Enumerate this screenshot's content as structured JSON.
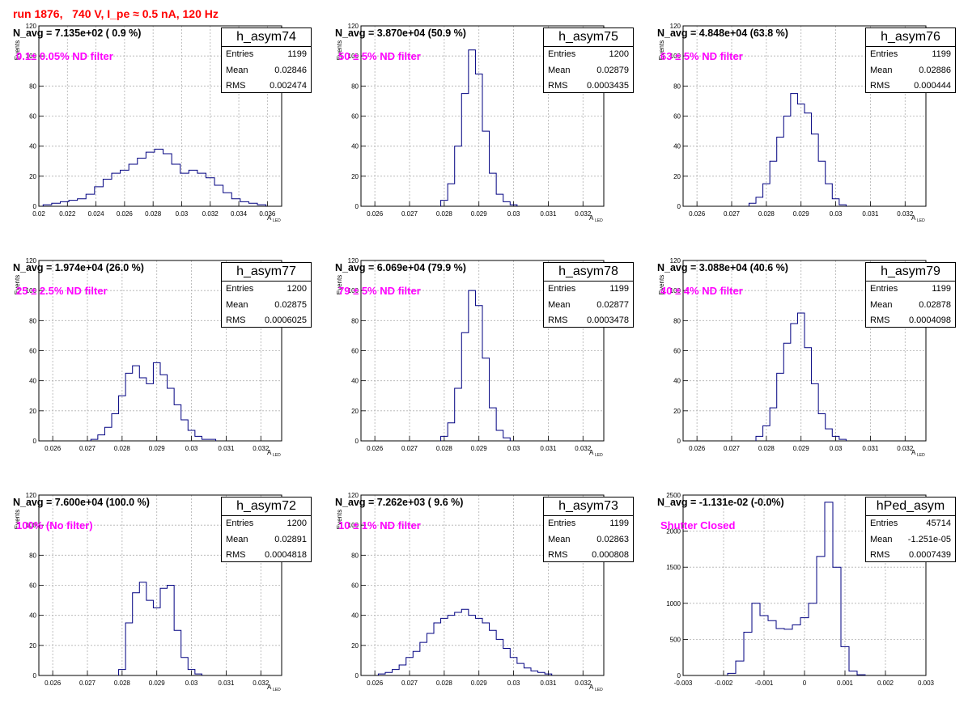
{
  "page": {
    "title": "run 1876,   740 V, I_pe ≈ 0.5 nA, 120 Hz"
  },
  "chart_data": [
    {
      "type": "histogram",
      "name": "h_asym74",
      "navg": "N_avg = 7.135e+02 ( 0.9 %)",
      "filter_label": "0.1± 0.05% ND filter",
      "stats": {
        "entries": "1199",
        "mean": "0.02846",
        "rms": "0.002474"
      },
      "xlim": [
        0.02,
        0.037
      ],
      "ylim": [
        0,
        120
      ],
      "xticks": [
        "0.02",
        "0.022",
        "0.024",
        "0.026",
        "0.028",
        "0.03",
        "0.032",
        "0.034",
        "0.036"
      ],
      "yticks": [
        "0",
        "20",
        "40",
        "60",
        "80",
        "100",
        "120"
      ],
      "xlabel": "A",
      "xlabel_sub": "LED",
      "ylabel": "Events",
      "line_color": "#000080",
      "x": [
        0.0206,
        0.0212,
        0.0218,
        0.0224,
        0.023,
        0.0236,
        0.0242,
        0.0248,
        0.0254,
        0.026,
        0.0266,
        0.0272,
        0.0278,
        0.0284,
        0.029,
        0.0296,
        0.0302,
        0.0308,
        0.0314,
        0.032,
        0.0326,
        0.0332,
        0.0338,
        0.0344,
        0.035,
        0.0356
      ],
      "y": [
        1,
        2,
        3,
        4,
        5,
        8,
        13,
        18,
        22,
        24,
        28,
        32,
        36,
        38,
        35,
        28,
        22,
        24,
        22,
        19,
        14,
        9,
        5,
        3,
        2,
        1
      ]
    },
    {
      "type": "histogram",
      "name": "h_asym75",
      "navg": "N_avg = 3.870e+04 (50.9 %)",
      "filter_label": "50 ± 5% ND filter",
      "stats": {
        "entries": "1200",
        "mean": "0.02879",
        "rms": "0.0003435"
      },
      "xlim": [
        0.0256,
        0.0326
      ],
      "ylim": [
        0,
        120
      ],
      "xticks": [
        "0.026",
        "0.027",
        "0.028",
        "0.029",
        "0.03",
        "0.031",
        "0.032"
      ],
      "yticks": [
        "0",
        "20",
        "40",
        "60",
        "80",
        "100",
        "120"
      ],
      "xlabel": "A",
      "xlabel_sub": "LED",
      "ylabel": "Events",
      "line_color": "#000080",
      "x": [
        0.028,
        0.0282,
        0.0284,
        0.0286,
        0.0288,
        0.029,
        0.0292,
        0.0294,
        0.0296,
        0.0298,
        0.03
      ],
      "y": [
        4,
        15,
        40,
        75,
        104,
        88,
        50,
        22,
        8,
        3,
        1
      ]
    },
    {
      "type": "histogram",
      "name": "h_asym76",
      "navg": "N_avg = 4.848e+04 (63.8 %)",
      "filter_label": "63 ± 5% ND filter",
      "stats": {
        "entries": "1199",
        "mean": "0.02886",
        "rms": "0.000444"
      },
      "xlim": [
        0.0256,
        0.0326
      ],
      "ylim": [
        0,
        120
      ],
      "xticks": [
        "0.026",
        "0.027",
        "0.028",
        "0.029",
        "0.03",
        "0.031",
        "0.032"
      ],
      "yticks": [
        "0",
        "20",
        "40",
        "60",
        "80",
        "100",
        "120"
      ],
      "xlabel": "A",
      "xlabel_sub": "LED",
      "ylabel": "Events",
      "line_color": "#000080",
      "x": [
        0.0276,
        0.0278,
        0.028,
        0.0282,
        0.0284,
        0.0286,
        0.0288,
        0.029,
        0.0292,
        0.0294,
        0.0296,
        0.0298,
        0.03,
        0.0302
      ],
      "y": [
        2,
        6,
        15,
        30,
        46,
        60,
        75,
        68,
        62,
        48,
        30,
        15,
        5,
        1
      ]
    },
    {
      "type": "histogram",
      "name": "h_asym77",
      "navg": "N_avg = 1.974e+04 (26.0 %)",
      "filter_label": "25 ± 2.5% ND filter",
      "stats": {
        "entries": "1200",
        "mean": "0.02875",
        "rms": "0.0006025"
      },
      "xlim": [
        0.0256,
        0.0326
      ],
      "ylim": [
        0,
        120
      ],
      "xticks": [
        "0.026",
        "0.027",
        "0.028",
        "0.029",
        "0.03",
        "0.031",
        "0.032"
      ],
      "yticks": [
        "0",
        "20",
        "40",
        "60",
        "80",
        "100",
        "120"
      ],
      "xlabel": "A",
      "xlabel_sub": "LED",
      "ylabel": "Events",
      "line_color": "#000080",
      "x": [
        0.0272,
        0.0274,
        0.0276,
        0.0278,
        0.028,
        0.0282,
        0.0284,
        0.0286,
        0.0288,
        0.029,
        0.0292,
        0.0294,
        0.0296,
        0.0298,
        0.03,
        0.0302,
        0.0304,
        0.0306
      ],
      "y": [
        1,
        4,
        9,
        18,
        30,
        45,
        50,
        42,
        38,
        52,
        44,
        35,
        24,
        14,
        7,
        3,
        1,
        1
      ]
    },
    {
      "type": "histogram",
      "name": "h_asym78",
      "navg": "N_avg = 6.069e+04 (79.9 %)",
      "filter_label": "79 ± 5% ND filter",
      "stats": {
        "entries": "1199",
        "mean": "0.02877",
        "rms": "0.0003478"
      },
      "xlim": [
        0.0256,
        0.0326
      ],
      "ylim": [
        0,
        120
      ],
      "xticks": [
        "0.026",
        "0.027",
        "0.028",
        "0.029",
        "0.03",
        "0.031",
        "0.032"
      ],
      "yticks": [
        "0",
        "20",
        "40",
        "60",
        "80",
        "100",
        "120"
      ],
      "xlabel": "A",
      "xlabel_sub": "LED",
      "ylabel": "Events",
      "line_color": "#000080",
      "x": [
        0.028,
        0.0282,
        0.0284,
        0.0286,
        0.0288,
        0.029,
        0.0292,
        0.0294,
        0.0296,
        0.0298
      ],
      "y": [
        3,
        12,
        35,
        72,
        100,
        90,
        55,
        22,
        7,
        2
      ]
    },
    {
      "type": "histogram",
      "name": "h_asym79",
      "navg": "N_avg = 3.088e+04 (40.6 %)",
      "filter_label": "40 ± 4% ND filter",
      "stats": {
        "entries": "1199",
        "mean": "0.02878",
        "rms": "0.0004098"
      },
      "xlim": [
        0.0256,
        0.0326
      ],
      "ylim": [
        0,
        120
      ],
      "xticks": [
        "0.026",
        "0.027",
        "0.028",
        "0.029",
        "0.03",
        "0.031",
        "0.032"
      ],
      "yticks": [
        "0",
        "20",
        "40",
        "60",
        "80",
        "100",
        "120"
      ],
      "xlabel": "A",
      "xlabel_sub": "LED",
      "ylabel": "Events",
      "line_color": "#000080",
      "x": [
        0.0278,
        0.028,
        0.0282,
        0.0284,
        0.0286,
        0.0288,
        0.029,
        0.0292,
        0.0294,
        0.0296,
        0.0298,
        0.03,
        0.0302
      ],
      "y": [
        3,
        10,
        22,
        45,
        65,
        78,
        85,
        62,
        38,
        18,
        8,
        3,
        1
      ]
    },
    {
      "type": "histogram",
      "name": "h_asym72",
      "navg": "N_avg = 7.600e+04 (100.0 %)",
      "filter_label": "100% (No filter)",
      "stats": {
        "entries": "1200",
        "mean": "0.02891",
        "rms": "0.0004818"
      },
      "xlim": [
        0.0256,
        0.0326
      ],
      "ylim": [
        0,
        120
      ],
      "xticks": [
        "0.026",
        "0.027",
        "0.028",
        "0.029",
        "0.03",
        "0.031",
        "0.032"
      ],
      "yticks": [
        "0",
        "20",
        "40",
        "60",
        "80",
        "100",
        "120"
      ],
      "xlabel": "A",
      "xlabel_sub": "LED",
      "ylabel": "Events",
      "line_color": "#000080",
      "x": [
        0.028,
        0.0282,
        0.0284,
        0.0286,
        0.0288,
        0.029,
        0.0292,
        0.0294,
        0.0296,
        0.0298,
        0.03,
        0.0302
      ],
      "y": [
        4,
        35,
        55,
        62,
        50,
        45,
        58,
        60,
        30,
        12,
        4,
        1
      ]
    },
    {
      "type": "histogram",
      "name": "h_asym73",
      "navg": "N_avg = 7.262e+03 ( 9.6 %)",
      "filter_label": "10 ± 1% ND filter",
      "stats": {
        "entries": "1199",
        "mean": "0.02863",
        "rms": "0.000808"
      },
      "xlim": [
        0.0256,
        0.0326
      ],
      "ylim": [
        0,
        120
      ],
      "xticks": [
        "0.026",
        "0.027",
        "0.028",
        "0.029",
        "0.03",
        "0.031",
        "0.032"
      ],
      "yticks": [
        "0",
        "20",
        "40",
        "60",
        "80",
        "100",
        "120"
      ],
      "xlabel": "A",
      "xlabel_sub": "LED",
      "ylabel": "Events",
      "line_color": "#000080",
      "x": [
        0.0262,
        0.0264,
        0.0266,
        0.0268,
        0.027,
        0.0272,
        0.0274,
        0.0276,
        0.0278,
        0.028,
        0.0282,
        0.0284,
        0.0286,
        0.0288,
        0.029,
        0.0292,
        0.0294,
        0.0296,
        0.0298,
        0.03,
        0.0302,
        0.0304,
        0.0306,
        0.0308,
        0.031
      ],
      "y": [
        1,
        2,
        4,
        7,
        12,
        16,
        22,
        28,
        35,
        38,
        40,
        42,
        44,
        40,
        38,
        35,
        30,
        24,
        18,
        12,
        8,
        5,
        3,
        2,
        1
      ]
    },
    {
      "type": "histogram",
      "name": "hPed_asym",
      "navg": "N_avg = -1.131e-02 (-0.0%)",
      "filter_label": "Shutter Closed",
      "stats": {
        "entries": "45714",
        "mean": "-1.251e-05",
        "rms": "0.0007439"
      },
      "xlim": [
        -0.003,
        0.003
      ],
      "ylim": [
        0,
        2500
      ],
      "xticks": [
        "-0.003",
        "-0.002",
        "-0.001",
        "0",
        "0.001",
        "0.002",
        "0.003"
      ],
      "yticks": [
        "0",
        "500",
        "1000",
        "1500",
        "2000",
        "2500"
      ],
      "ylabel": "",
      "line_color": "#000080",
      "x": [
        -0.0018,
        -0.0016,
        -0.0014,
        -0.0012,
        -0.001,
        -0.0008,
        -0.0006,
        -0.0004,
        -0.0002,
        0.0,
        0.0002,
        0.0004,
        0.0006,
        0.0008,
        0.001,
        0.0012,
        0.0014
      ],
      "y": [
        30,
        200,
        600,
        1000,
        830,
        760,
        650,
        640,
        700,
        800,
        1000,
        1650,
        2400,
        1500,
        400,
        60,
        10
      ]
    }
  ]
}
